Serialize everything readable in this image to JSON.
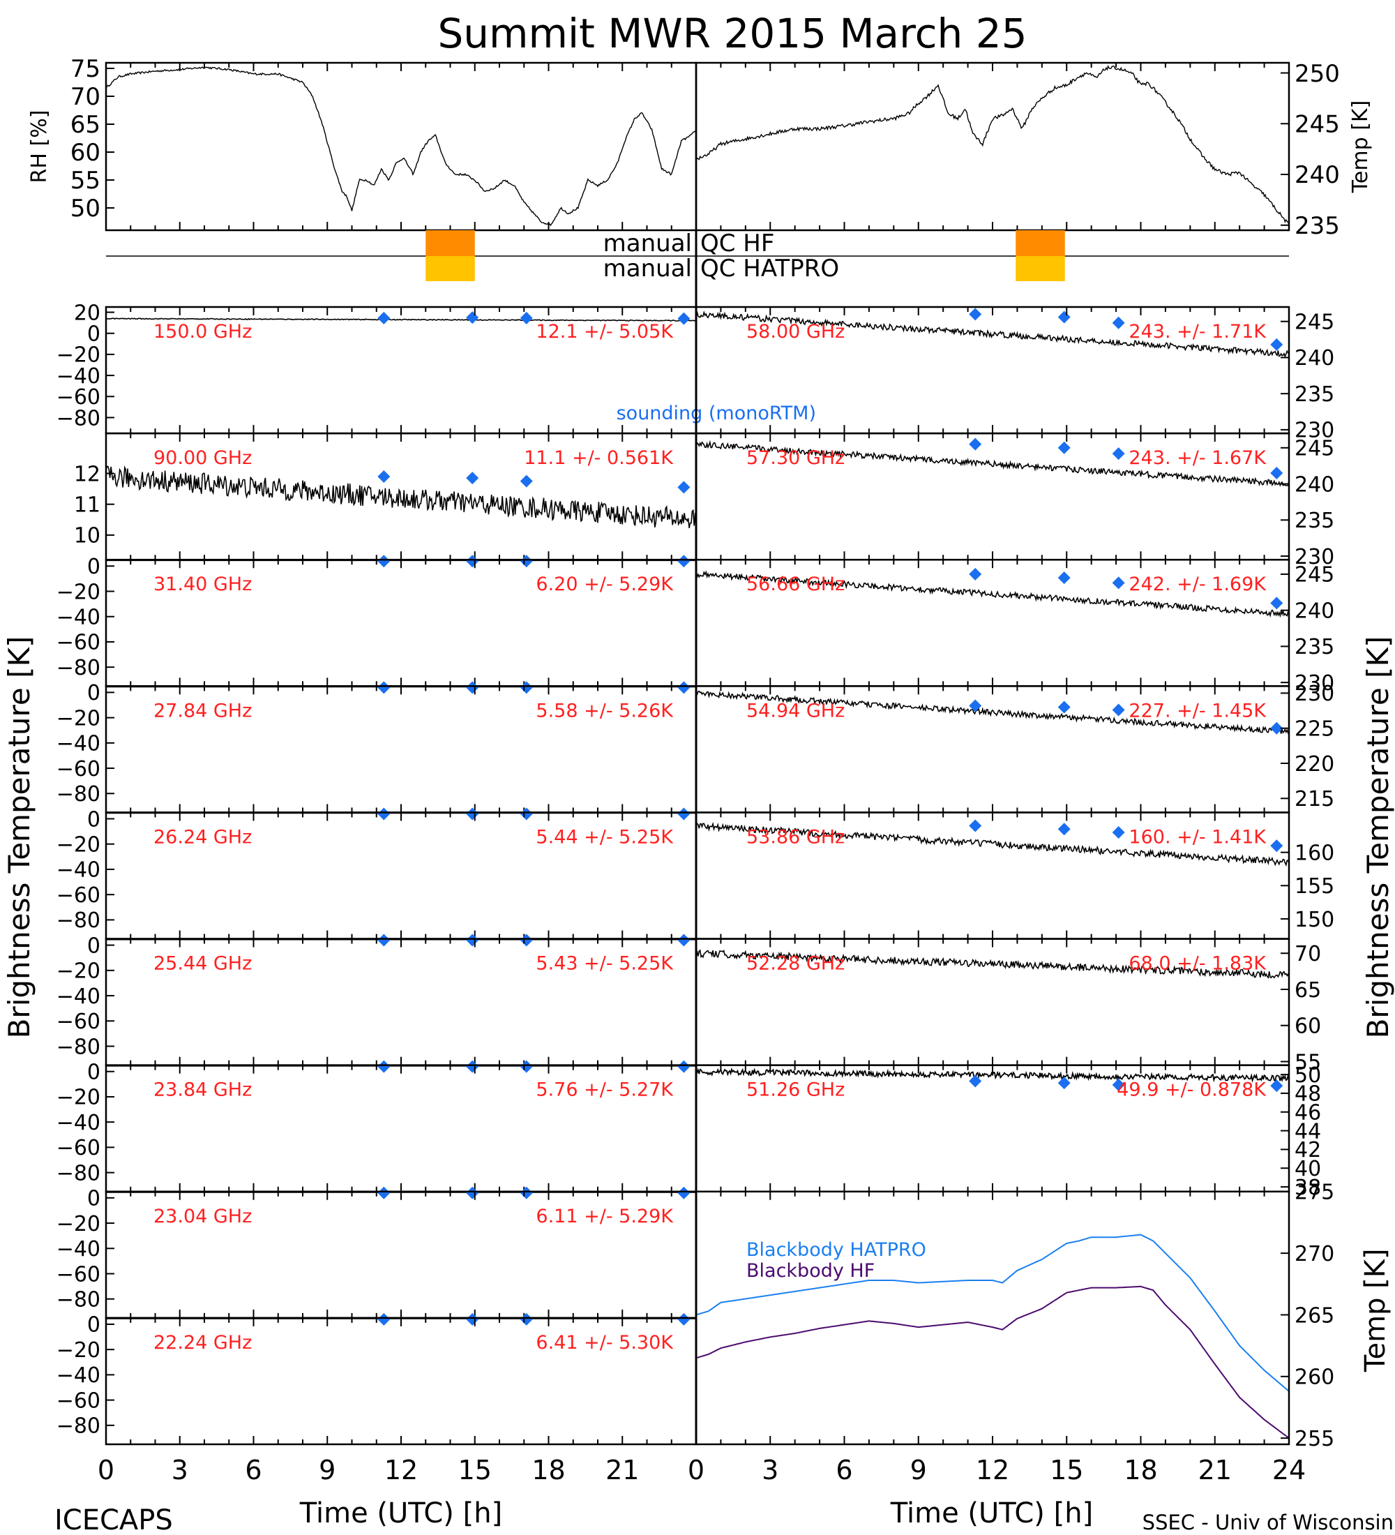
{
  "title": "Summit MWR 2015 March 25",
  "footer": {
    "project": "ICECAPS",
    "credit": "SSEC - Univ of Wisconsin"
  },
  "colors": {
    "label_red": "#ff2020",
    "sounding_blue": "#1a6ff0",
    "blackbody_hatpro": "#1a7ff0",
    "blackbody_hf": "#4b0a6e",
    "qc_hf": "#ff8c00",
    "qc_hatpro": "#ffc300"
  },
  "chart_data": [
    {
      "type": "line",
      "panel": "top-left",
      "ylabel": "RH [%]",
      "ylim": [
        46,
        76
      ],
      "yticks": [
        50,
        55,
        60,
        65,
        70,
        75
      ],
      "xlim": [
        0,
        24
      ],
      "series": [
        {
          "x": [
            0,
            0.5,
            1,
            2,
            3,
            4,
            5,
            6,
            7,
            8,
            8.4,
            8.8,
            9.3,
            9.6,
            9.8,
            10.0,
            10.3,
            10.6,
            10.9,
            11.2,
            11.5,
            11.8,
            12.1,
            12.5,
            12.8,
            13.1,
            13.4,
            13.8,
            14.2,
            14.6,
            15,
            15.4,
            15.8,
            16.2,
            16.6,
            17.0,
            17.3,
            17.7,
            18.1,
            18.5,
            18.8,
            19.2,
            19.6,
            20.0,
            20.4,
            20.8,
            21.1,
            21.5,
            21.8,
            22.2,
            22.6,
            23.0,
            23.4,
            23.8,
            24
          ],
          "y": [
            71.5,
            73.5,
            74,
            74.5,
            74.8,
            75.2,
            74.8,
            74,
            74,
            72.5,
            70,
            65,
            57,
            53,
            52,
            49.5,
            55,
            55,
            54,
            57,
            55,
            58,
            59,
            56,
            60,
            62,
            63,
            58,
            56,
            56,
            55,
            53,
            53.5,
            55,
            54,
            51,
            49.5,
            47.5,
            47,
            50,
            49,
            50,
            55,
            54,
            55,
            58,
            62,
            66,
            67,
            64,
            57,
            56,
            62,
            63,
            64
          ]
        }
      ]
    },
    {
      "type": "line",
      "panel": "top-right",
      "ylabel": "Temp [K]",
      "ylim": [
        234.5,
        251
      ],
      "yticks": [
        235,
        240,
        245,
        250
      ],
      "xlim": [
        0,
        24
      ],
      "series": [
        {
          "x": [
            0,
            0.5,
            1,
            2,
            3,
            4,
            5,
            6,
            7,
            8,
            8.6,
            9.0,
            9.4,
            9.8,
            10.2,
            10.6,
            10.9,
            11.2,
            11.6,
            12.0,
            12.4,
            12.8,
            13.2,
            13.6,
            14.0,
            14.5,
            15.0,
            15.4,
            15.8,
            16.2,
            16.6,
            17.0,
            17.4,
            17.7,
            18.0,
            18.3,
            18.7,
            19.1,
            19.5,
            20.0,
            20.5,
            21.0,
            21.5,
            22.0,
            22.5,
            23.0,
            23.5,
            24
          ],
          "y": [
            241.5,
            242,
            243,
            243.5,
            244,
            244.5,
            244.5,
            244.8,
            245.2,
            245.5,
            246,
            247,
            247.8,
            248.8,
            246,
            245.5,
            246.5,
            244,
            243,
            245.5,
            245.8,
            246.5,
            244.5,
            246.5,
            247.5,
            248.5,
            248.8,
            249.5,
            250,
            249.5,
            250.5,
            250.5,
            250.2,
            249.8,
            248.8,
            249,
            248,
            246.8,
            245.5,
            243.5,
            241.8,
            240.5,
            240,
            240.2,
            239,
            238,
            236.5,
            235
          ]
        }
      ]
    },
    {
      "type": "bar",
      "panel": "qc-strip",
      "labels": [
        "manual QC HF",
        "manual QC HATPRO"
      ],
      "intervals": [
        [
          13,
          15
        ],
        [
          37,
          39
        ]
      ]
    },
    {
      "type": "line",
      "panel": "left-channels",
      "xlabel": "Time (UTC) [h]",
      "ylabel": "Brightness Temperature [K]",
      "xlim": [
        0,
        24
      ],
      "xticks": [
        0,
        3,
        6,
        9,
        12,
        15,
        18,
        21
      ],
      "sounding_times": [
        11.3,
        14.9,
        17.1,
        23.5
      ],
      "channels": [
        {
          "freq": "150.0 GHz",
          "stats": "12.1 +/- 5.05K",
          "ylim": [
            -95,
            25
          ],
          "yticks": [
            20,
            0,
            -20,
            -40,
            -60,
            -80
          ],
          "level": 14,
          "end_level": 12,
          "noise": 0.4,
          "sounding": [
            14.5,
            15,
            14.5,
            14
          ],
          "note": "sounding (monoRTM)"
        },
        {
          "freq": "90.00 GHz",
          "stats": "11.1 +/- 0.561K",
          "ylim": [
            9.2,
            13.3
          ],
          "yticks": [
            12,
            11,
            10
          ],
          "level": 11.9,
          "end_level": 10.5,
          "noise": 0.35,
          "sounding": [
            11.9,
            11.85,
            11.75,
            11.55
          ]
        },
        {
          "freq": "31.40 GHz",
          "stats": "6.20 +/- 5.29K",
          "ylim": [
            -95,
            5
          ],
          "yticks": [
            0,
            -20,
            -40,
            -60,
            -80
          ],
          "level": 6.2,
          "end_level": 6.2,
          "noise": 0.1,
          "sounding": [
            6.2,
            6.2,
            6.2,
            6.2
          ]
        },
        {
          "freq": "27.84 GHz",
          "stats": "5.58 +/- 5.26K",
          "ylim": [
            -95,
            5
          ],
          "yticks": [
            0,
            -20,
            -40,
            -60,
            -80
          ],
          "level": 5.6,
          "end_level": 5.6,
          "noise": 0.1,
          "sounding": [
            5.6,
            5.6,
            5.6,
            5.6
          ]
        },
        {
          "freq": "26.24 GHz",
          "stats": "5.44 +/- 5.25K",
          "ylim": [
            -95,
            5
          ],
          "yticks": [
            0,
            -20,
            -40,
            -60,
            -80
          ],
          "level": 5.4,
          "end_level": 5.4,
          "noise": 0.1,
          "sounding": [
            5.4,
            5.4,
            5.4,
            5.4
          ]
        },
        {
          "freq": "25.44 GHz",
          "stats": "5.43 +/- 5.25K",
          "ylim": [
            -95,
            5
          ],
          "yticks": [
            0,
            -20,
            -40,
            -60,
            -80
          ],
          "level": 5.4,
          "end_level": 5.4,
          "noise": 0.1,
          "sounding": [
            5.4,
            5.4,
            5.4,
            5.4
          ]
        },
        {
          "freq": "23.84 GHz",
          "stats": "5.76 +/- 5.27K",
          "ylim": [
            -95,
            5
          ],
          "yticks": [
            0,
            -20,
            -40,
            -60,
            -80
          ],
          "level": 5.8,
          "end_level": 5.8,
          "noise": 0.1,
          "sounding": [
            5.8,
            5.8,
            5.8,
            5.8
          ]
        },
        {
          "freq": "23.04 GHz",
          "stats": "6.11 +/- 5.29K",
          "ylim": [
            -95,
            5
          ],
          "yticks": [
            0,
            -20,
            -40,
            -60,
            -80
          ],
          "level": 6.1,
          "end_level": 6.1,
          "noise": 0.1,
          "sounding": [
            6.1,
            6.1,
            6.1,
            6.1
          ]
        },
        {
          "freq": "22.24 GHz",
          "stats": "6.41 +/- 5.30K",
          "ylim": [
            -95,
            5
          ],
          "yticks": [
            0,
            -20,
            -40,
            -60,
            -80
          ],
          "level": 6.4,
          "end_level": 6.4,
          "noise": 0.1,
          "sounding": [
            6.4,
            6.4,
            6.4,
            6.4
          ]
        }
      ]
    },
    {
      "type": "line",
      "panel": "right-channels",
      "xlabel": "Time (UTC) [h]",
      "ylabel": "Brightness Temperature [K]",
      "xlim": [
        0,
        24
      ],
      "xticks": [
        0,
        3,
        6,
        9,
        12,
        15,
        18,
        21,
        24
      ],
      "sounding_times": [
        11.3,
        14.9,
        17.1,
        23.5
      ],
      "channels": [
        {
          "freq": "58.00 GHz",
          "stats": "243. +/- 1.71K",
          "ylim": [
            229.5,
            247
          ],
          "yticks": [
            245,
            240,
            235,
            230
          ],
          "level": 246,
          "end_level": 240.5,
          "noise": 0.4,
          "sounding": [
            246,
            245.6,
            244.8,
            241.8
          ]
        },
        {
          "freq": "57.30 GHz",
          "stats": "243. +/- 1.67K",
          "ylim": [
            229.5,
            247
          ],
          "yticks": [
            245,
            240,
            235,
            230
          ],
          "level": 245.5,
          "end_level": 240,
          "noise": 0.4,
          "sounding": [
            245.5,
            245,
            244.2,
            241.5
          ]
        },
        {
          "freq": "56.66 GHz",
          "stats": "242. +/- 1.69K",
          "ylim": [
            229.5,
            247
          ],
          "yticks": [
            245,
            240,
            235,
            230
          ],
          "level": 245,
          "end_level": 239.5,
          "noise": 0.4,
          "sounding": [
            245,
            244.5,
            243.8,
            241
          ]
        },
        {
          "freq": "54.94 GHz",
          "stats": "227. +/- 1.45K",
          "ylim": [
            213,
            231
          ],
          "yticks": [
            230,
            225,
            220,
            215
          ],
          "level": 230,
          "end_level": 224.5,
          "noise": 0.4,
          "sounding": [
            228.2,
            228,
            227.6,
            225
          ]
        },
        {
          "freq": "53.86 GHz",
          "stats": "160. +/- 1.41K",
          "ylim": [
            147,
            166
          ],
          "yticks": [
            160,
            155,
            150
          ],
          "level": 164,
          "end_level": 158.5,
          "noise": 0.5,
          "sounding": [
            164,
            163.5,
            163,
            161
          ]
        },
        {
          "freq": "52.28 GHz",
          "stats": "68.0 +/- 1.83K",
          "ylim": [
            54.5,
            72
          ],
          "yticks": [
            70,
            65,
            60,
            55
          ],
          "level": 70,
          "end_level": 67,
          "noise": 0.5,
          "sounding": []
        },
        {
          "freq": "51.26 GHz",
          "stats": "49.9 +/- 0.878K",
          "ylim": [
            37.5,
            51
          ],
          "yticks": [
            50,
            48,
            46,
            44,
            42,
            40,
            38
          ],
          "level": 50.3,
          "end_level": 49.6,
          "noise": 0.3,
          "sounding": [
            49.3,
            49.1,
            48.9,
            48.8
          ]
        }
      ]
    },
    {
      "type": "line",
      "panel": "blackbody",
      "ylabel": "Temp [K]",
      "ylim": [
        254.5,
        275
      ],
      "yticks": [
        275,
        270,
        265,
        260,
        255
      ],
      "xlim": [
        0,
        24
      ],
      "legend": "top-left",
      "series": [
        {
          "name": "Blackbody HATPRO",
          "x": [
            0,
            0.5,
            1,
            2,
            3,
            4,
            5,
            6,
            7,
            8,
            9,
            10,
            11,
            12,
            12.4,
            13,
            14,
            15,
            15.5,
            16,
            17,
            18,
            18.5,
            19,
            20,
            21,
            22,
            23,
            24
          ],
          "y": [
            265,
            265.3,
            266,
            266.3,
            266.6,
            266.9,
            267.2,
            267.5,
            267.8,
            267.8,
            267.6,
            267.7,
            267.8,
            267.8,
            267.6,
            268.6,
            269.5,
            270.8,
            271.0,
            271.3,
            271.3,
            271.5,
            271.0,
            270.0,
            268.0,
            265.3,
            262.5,
            260.5,
            258.8
          ]
        },
        {
          "name": "Blackbody HF",
          "x": [
            0,
            0.5,
            1,
            2,
            3,
            4,
            5,
            6,
            7,
            8,
            9,
            10,
            11,
            12,
            12.4,
            13,
            14,
            15,
            15.5,
            16,
            17,
            18,
            18.5,
            19,
            20,
            21,
            22,
            23,
            24
          ],
          "y": [
            261.5,
            261.8,
            262.3,
            262.8,
            263.2,
            263.5,
            263.9,
            264.2,
            264.5,
            264.3,
            264.0,
            264.2,
            264.4,
            264.0,
            263.8,
            264.7,
            265.5,
            266.8,
            267.0,
            267.2,
            267.2,
            267.3,
            267.0,
            265.8,
            263.8,
            261.0,
            258.3,
            256.5,
            255.0
          ]
        }
      ]
    }
  ]
}
